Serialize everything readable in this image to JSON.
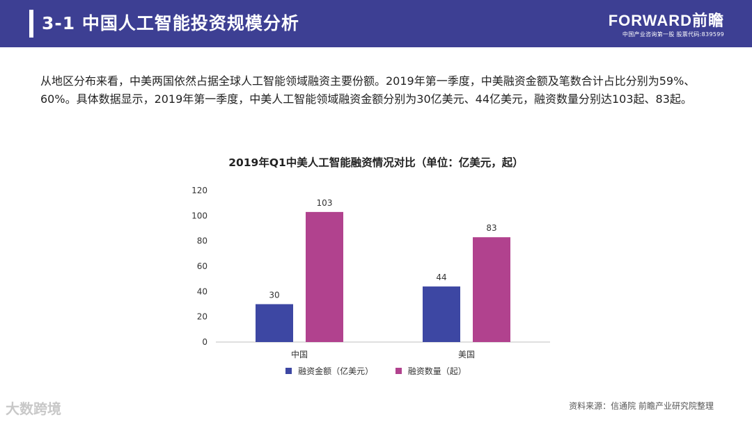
{
  "header": {
    "title": "3-1 中国人工智能投资规模分析",
    "brand_logo": "FORWARD前瞻",
    "brand_slogan": "中国产业咨询第一股 股票代码:839599"
  },
  "intro_text": "从地区分布来看，中美两国依然占据全球人工智能领域融资主要份额。2019年第一季度，中美融资金额及笔数合计占比分别为59%、60%。具体数据显示，2019年第一季度，中美人工智能领域融资金额分别为30亿美元、44亿美元，融资数量分别达103起、83起。",
  "chart_data": {
    "type": "bar",
    "title": "2019年Q1中美人工智能融资情况对比（单位：亿美元，起）",
    "categories": [
      "中国",
      "美国"
    ],
    "series": [
      {
        "name": "融资金额（亿美元）",
        "values": [
          30,
          44
        ],
        "color": "#3d47a3"
      },
      {
        "name": "融资数量（起）",
        "values": [
          103,
          83
        ],
        "color": "#b1428e"
      }
    ],
    "ylim": [
      0,
      120
    ],
    "yticks": [
      "0",
      "20",
      "40",
      "60",
      "80",
      "100",
      "120"
    ],
    "data_labels": true,
    "legend_position": "bottom",
    "grid": false
  },
  "watermark_logo": "大数跨境",
  "source": "资料来源：信通院 前瞻产业研究院整理"
}
